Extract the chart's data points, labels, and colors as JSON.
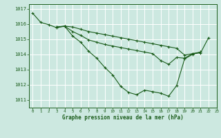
{
  "title": "Graphe pression niveau de la mer (hPa)",
  "bg_color": "#cce8e0",
  "grid_color": "#ffffff",
  "line_color": "#1a5c1a",
  "xlim": [
    -0.5,
    23
  ],
  "ylim": [
    1010.5,
    1017.3
  ],
  "yticks": [
    1011,
    1012,
    1013,
    1014,
    1015,
    1016,
    1017
  ],
  "xticks": [
    0,
    1,
    2,
    3,
    4,
    5,
    6,
    7,
    8,
    9,
    10,
    11,
    12,
    13,
    14,
    15,
    16,
    17,
    18,
    19,
    20,
    21,
    22,
    23
  ],
  "series": [
    [
      1016.7,
      1016.1,
      1015.95,
      1015.75,
      1015.85,
      1015.8,
      1015.65,
      1015.5,
      1015.4,
      1015.3,
      1015.2,
      1015.1,
      1015.0,
      1014.9,
      1014.8,
      1014.7,
      1014.6,
      1014.5,
      1014.4,
      1013.95,
      1014.05,
      1014.1,
      1015.1,
      null
    ],
    [
      null,
      null,
      null,
      1015.8,
      1015.85,
      1015.5,
      1015.25,
      1014.95,
      1014.8,
      1014.65,
      1014.55,
      1014.45,
      1014.35,
      1014.25,
      1014.15,
      1014.05,
      1013.6,
      1013.35,
      1013.8,
      1013.75,
      1014.05,
      1014.15,
      null,
      null
    ],
    [
      null,
      null,
      null,
      1015.8,
      1015.85,
      1015.2,
      1014.8,
      1014.2,
      1013.75,
      1013.15,
      1012.65,
      1011.9,
      1011.5,
      1011.35,
      1011.65,
      1011.55,
      1011.45,
      1011.25,
      1011.95,
      1013.7,
      1014.0,
      1014.15,
      null,
      null
    ]
  ]
}
